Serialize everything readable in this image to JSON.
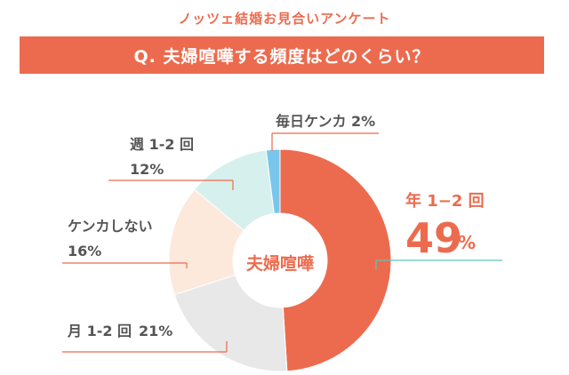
{
  "header": {
    "survey_title": "ノッツェ結婚お見合いアンケート",
    "question": "Q. 夫婦喧嘩する頻度はどのくらい？"
  },
  "chart_data": {
    "type": "pie",
    "center_label": "夫婦喧嘩",
    "slices": [
      {
        "name": "年 1−2 回",
        "value": 49,
        "value_text": "49",
        "unit": "%",
        "color": "#ec6b4e"
      },
      {
        "name": "月 1-2 回",
        "value": 21,
        "value_text": "21%",
        "color": "#e8e8e8"
      },
      {
        "name": "ケンカしない",
        "value": 16,
        "value_text": "16%",
        "color": "#fde8dc"
      },
      {
        "name": "週 1-2 回",
        "value": 12,
        "value_text": "12%",
        "color": "#d6f0ed"
      },
      {
        "name": "毎日ケンカ",
        "value": 2,
        "value_text": "2%",
        "color": "#78c6ec"
      }
    ],
    "leader_colors": {
      "accent": "#5ec4b4",
      "default": "#ec6b4e"
    }
  }
}
